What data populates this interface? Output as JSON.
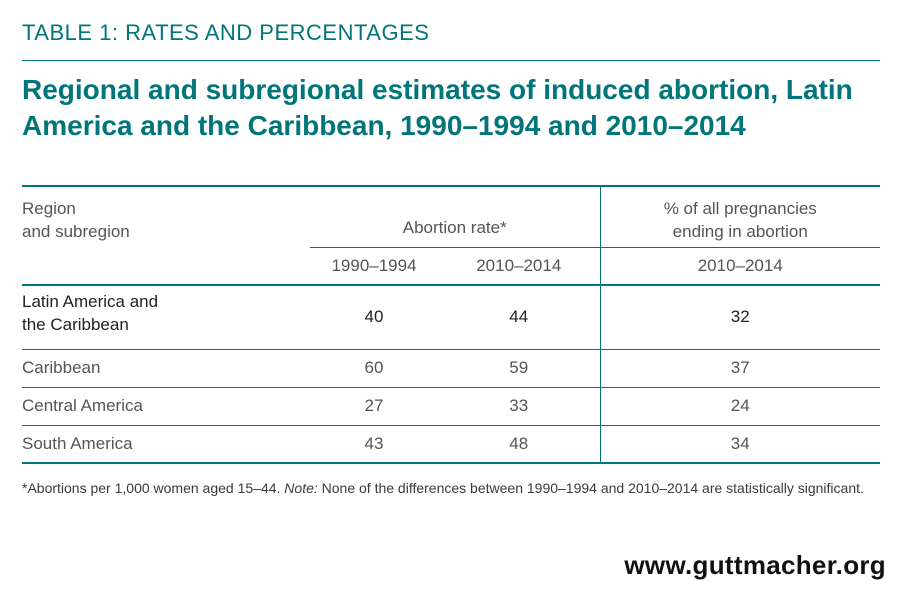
{
  "header": {
    "eyebrow": "TABLE 1: RATES AND PERCENTAGES",
    "title": "Regional and subregional estimates of induced abortion, Latin America and the Caribbean, 1990–1994 and 2010–2014"
  },
  "table": {
    "region_header_line1": "Region",
    "region_header_line2": "and subregion",
    "rate_header": "Abortion rate*",
    "pct_header_line1": "% of all pregnancies",
    "pct_header_line2": "ending in abortion",
    "year_1": "1990–1994",
    "year_2": "2010–2014",
    "year_pct": "2010–2014",
    "total": {
      "name_line1": "Latin America and",
      "name_line2": "the Caribbean",
      "rate_1990": "40",
      "rate_2010": "44",
      "pct_2010": "32"
    },
    "rows": [
      {
        "name": "Caribbean",
        "rate_1990": "60",
        "rate_2010": "59",
        "pct_2010": "37"
      },
      {
        "name": "Central America",
        "rate_1990": "27",
        "rate_2010": "33",
        "pct_2010": "24"
      },
      {
        "name": "South America",
        "rate_1990": "43",
        "rate_2010": "48",
        "pct_2010": "34"
      }
    ]
  },
  "footnote": {
    "part1": "*Abortions per 1,000 women aged 15–44. ",
    "note_label": "Note:",
    "part2": " None of the differences between 1990–1994 and 2010–2014 are statistically significant."
  },
  "footer": {
    "website": "www.guttmacher.org"
  },
  "colors": {
    "accent": "#00757a",
    "text": "#231f20",
    "muted_text": "#555555"
  }
}
